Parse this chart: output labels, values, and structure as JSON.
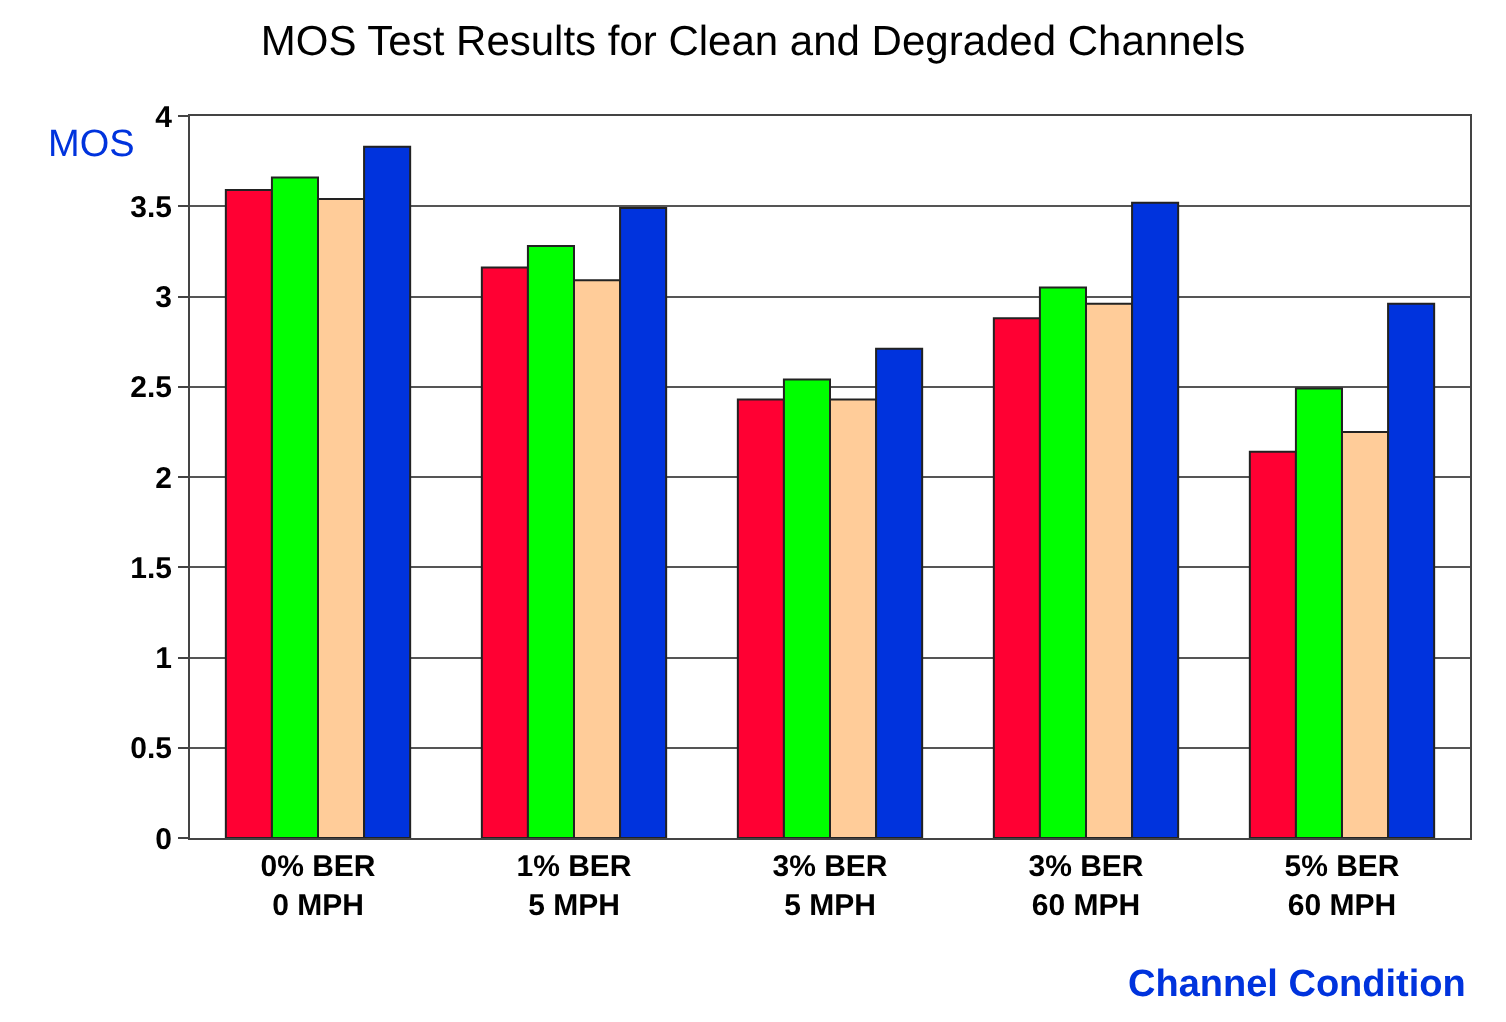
{
  "chart_data": {
    "type": "bar",
    "title": "MOS Test Results for Clean and Degraded Channels",
    "xlabel": "Channel Condition",
    "ylabel": "MOS",
    "categories": [
      "0% BER\n0 MPH",
      "1% BER\n5 MPH",
      "3% BER\n5 MPH",
      "3% BER\n60 MPH",
      "5% BER\n60 MPH"
    ],
    "series": [
      {
        "color": "#ff0033",
        "values": [
          3.59,
          3.16,
          2.43,
          2.88,
          2.14
        ]
      },
      {
        "color": "#00ff00",
        "values": [
          3.66,
          3.28,
          2.54,
          3.05,
          2.49
        ]
      },
      {
        "color": "#ffcc99",
        "values": [
          3.54,
          3.09,
          2.43,
          2.96,
          2.25
        ]
      },
      {
        "color": "#0033dd",
        "values": [
          3.83,
          3.49,
          2.71,
          3.52,
          2.96
        ]
      }
    ],
    "ylim": [
      0,
      4
    ],
    "yticks": [
      0,
      0.5,
      1,
      1.5,
      2,
      2.5,
      3,
      3.5,
      4
    ],
    "grid": "y"
  }
}
